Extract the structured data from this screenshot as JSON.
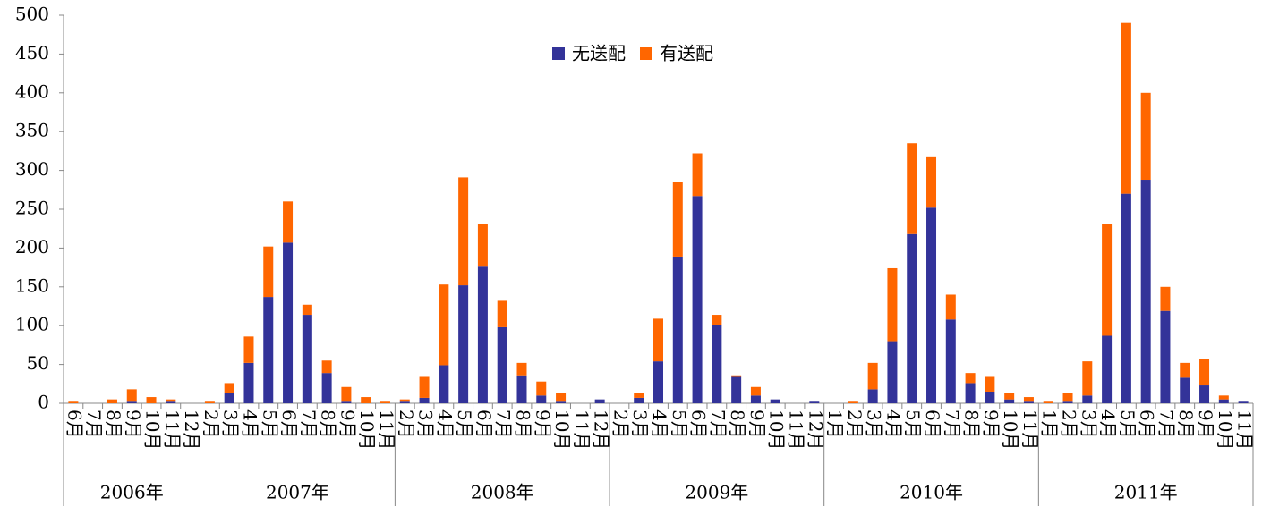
{
  "chart_data": {
    "type": "bar",
    "stacked": true,
    "category_groups": [
      {
        "name": "2006年",
        "months": [
          "6月",
          "7月",
          "8月",
          "9月",
          "10月",
          "11月",
          "12月"
        ]
      },
      {
        "name": "2007年",
        "months": [
          "2月",
          "3月",
          "4月",
          "5月",
          "6月",
          "7月",
          "8月",
          "9月",
          "10月",
          "11月"
        ]
      },
      {
        "name": "2008年",
        "months": [
          "2月",
          "3月",
          "4月",
          "5月",
          "6月",
          "7月",
          "8月",
          "9月",
          "10月",
          "11月",
          "12月"
        ]
      },
      {
        "name": "2009年",
        "months": [
          "2月",
          "3月",
          "4月",
          "5月",
          "6月",
          "7月",
          "8月",
          "9月",
          "10月",
          "11月",
          "12月"
        ]
      },
      {
        "name": "2010年",
        "months": [
          "1月",
          "2月",
          "3月",
          "4月",
          "5月",
          "6月",
          "7月",
          "8月",
          "9月",
          "10月",
          "11月"
        ]
      },
      {
        "name": "2011年",
        "months": [
          "1月",
          "2月",
          "3月",
          "4月",
          "5月",
          "6月",
          "7月",
          "8月",
          "9月",
          "10月",
          "11月"
        ]
      }
    ],
    "series": [
      {
        "name": "无送配",
        "color": "#333399",
        "values": [
          0,
          0,
          0,
          2,
          0,
          2,
          0,
          0,
          13,
          52,
          137,
          207,
          114,
          39,
          2,
          0,
          0,
          2,
          7,
          49,
          152,
          176,
          98,
          36,
          10,
          2,
          0,
          5,
          0,
          7,
          54,
          189,
          267,
          101,
          34,
          10,
          5,
          0,
          2,
          0,
          0,
          18,
          80,
          218,
          252,
          108,
          26,
          15,
          5,
          2,
          0,
          2,
          10,
          87,
          270,
          288,
          119,
          33,
          23,
          5,
          2
        ]
      },
      {
        "name": "有送配",
        "color": "#ff6600",
        "values": [
          2,
          0,
          5,
          16,
          8,
          3,
          0,
          2,
          13,
          34,
          65,
          53,
          13,
          16,
          19,
          8,
          2,
          3,
          27,
          104,
          139,
          55,
          34,
          16,
          18,
          11,
          0,
          0,
          0,
          6,
          55,
          96,
          55,
          13,
          2,
          11,
          0,
          0,
          0,
          0,
          2,
          34,
          94,
          117,
          65,
          32,
          13,
          19,
          8,
          6,
          2,
          11,
          44,
          144,
          220,
          112,
          31,
          19,
          34,
          5,
          0
        ]
      }
    ],
    "ylim": [
      0,
      500
    ],
    "yticks": [
      0,
      50,
      100,
      150,
      200,
      250,
      300,
      350,
      400,
      450,
      500
    ],
    "legend": "top-center"
  }
}
